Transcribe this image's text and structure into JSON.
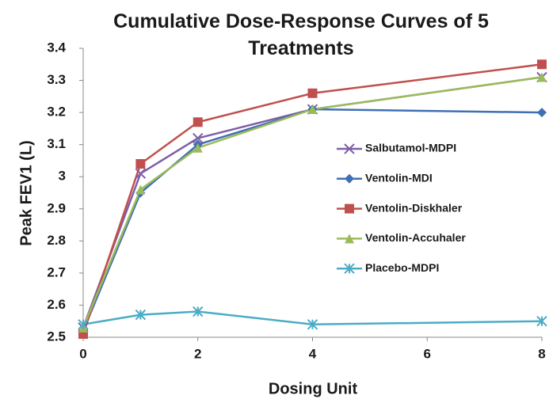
{
  "chart_data": {
    "type": "line",
    "title": "Cumulative Dose-Response Curves of 5 Treatments",
    "x_label": "Dosing Unit",
    "y_label": "Peak FEV1 (L)",
    "x": [
      0,
      1,
      2,
      4,
      8
    ],
    "xlim": [
      0,
      8
    ],
    "xticks": [
      0,
      2,
      4,
      6,
      8
    ],
    "ylim": [
      2.5,
      3.4
    ],
    "yticks": [
      2.5,
      2.6,
      2.7,
      2.8,
      2.9,
      3,
      3.1,
      3.2,
      3.3,
      3.4
    ],
    "grid": false,
    "legend": "right",
    "series": [
      {
        "name": "Salbutamol-MDPI",
        "color": "#7d5fa8",
        "marker": "x",
        "values": [
          2.53,
          3.01,
          3.12,
          3.21,
          3.31
        ]
      },
      {
        "name": "Ventolin-MDI",
        "color": "#3f6fb5",
        "marker": "diamond",
        "values": [
          2.52,
          2.95,
          3.1,
          3.21,
          3.2
        ]
      },
      {
        "name": "Ventolin-Diskhaler",
        "color": "#c0504d",
        "marker": "square",
        "values": [
          2.51,
          3.04,
          3.17,
          3.26,
          3.35
        ]
      },
      {
        "name": "Ventolin-Accuhaler",
        "color": "#9bbb59",
        "marker": "triangle",
        "values": [
          2.53,
          2.96,
          3.09,
          3.21,
          3.31
        ]
      },
      {
        "name": "Placebo-MDPI",
        "color": "#4bacc6",
        "marker": "asterisk",
        "values": [
          2.54,
          2.57,
          2.58,
          2.54,
          2.55
        ]
      }
    ]
  }
}
